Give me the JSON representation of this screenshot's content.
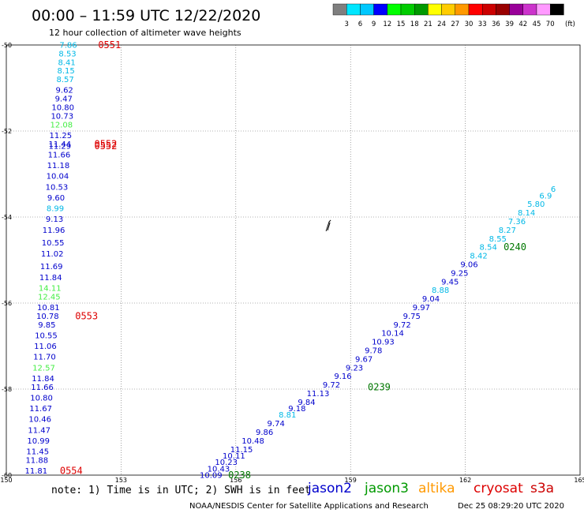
{
  "header": {
    "title": "00:00 – 11:59 UTC 12/22/2020",
    "subtitle": "12 hour collection of altimeter wave heights"
  },
  "colorbar": {
    "unit": "(ft)",
    "ticks": [
      "3",
      "6",
      "9",
      "12",
      "15",
      "18",
      "21",
      "24",
      "27",
      "30",
      "33",
      "36",
      "39",
      "42",
      "45",
      "70"
    ],
    "colors": [
      "#7f7f7f",
      "#00e6ff",
      "#00c8ff",
      "#0000ff",
      "#00ff00",
      "#00cc00",
      "#009900",
      "#ffff00",
      "#ffcc00",
      "#ff9900",
      "#ff0000",
      "#cc0000",
      "#990000",
      "#990099",
      "#cc33cc",
      "#ff99ff",
      "#000000"
    ]
  },
  "footer": {
    "note": "note:  1) Time is in UTC;  2) SWH is in feet",
    "credit": "NOAA/NESDIS Center for Satellite Applications and Research",
    "timestamp": "Dec 25 08:29:20 UTC 2020",
    "legend": [
      {
        "label": "jason2",
        "color": "#0000cc"
      },
      {
        "label": "jason3",
        "color": "#009900"
      },
      {
        "label": "altika",
        "color": "#ff9900"
      },
      {
        "label": "cryosat",
        "color": "#dd0000"
      },
      {
        "label": "s3a",
        "color": "#cc0000"
      }
    ]
  },
  "chart_data": {
    "type": "scatter",
    "xlim": [
      150,
      165
    ],
    "ylim": [
      -50,
      -60
    ],
    "x_ticks": [
      "150",
      "153",
      "156",
      "159",
      "162",
      "165"
    ],
    "y_ticks": [
      "-50",
      "-52",
      "-54",
      "-56",
      "-58",
      "-60"
    ],
    "grid": true,
    "series": [
      {
        "name": "jason2",
        "points": [
          [
            151.62,
            -50.0,
            "7.86"
          ],
          [
            151.6,
            -50.2,
            "8.53"
          ],
          [
            151.58,
            -50.4,
            "8.41"
          ],
          [
            151.56,
            -50.6,
            "8.15"
          ],
          [
            151.54,
            -50.8,
            "8.57"
          ],
          [
            151.52,
            -51.05,
            "9.62"
          ],
          [
            151.5,
            -51.25,
            "9.47"
          ],
          [
            151.48,
            -51.45,
            "10.80"
          ],
          [
            151.46,
            -51.65,
            "10.73"
          ],
          [
            151.44,
            -51.85,
            "12.08"
          ],
          [
            151.42,
            -52.1,
            "11.25"
          ],
          [
            151.4,
            -52.3,
            "11.44"
          ],
          [
            151.4,
            -52.35,
            "11.29"
          ],
          [
            151.38,
            -52.55,
            "11.66"
          ],
          [
            151.36,
            -52.8,
            "11.18"
          ],
          [
            151.34,
            -53.05,
            "10.04"
          ],
          [
            151.32,
            -53.3,
            "10.53"
          ],
          [
            151.3,
            -53.55,
            "9.60"
          ],
          [
            151.28,
            -53.8,
            "8.99"
          ],
          [
            151.26,
            -54.05,
            "9.13"
          ],
          [
            151.24,
            -54.3,
            "11.96"
          ],
          [
            151.22,
            -54.6,
            "10.55"
          ],
          [
            151.2,
            -54.85,
            "11.02"
          ],
          [
            151.18,
            -55.15,
            "11.69"
          ],
          [
            151.16,
            -55.4,
            "11.84"
          ],
          [
            151.14,
            -55.65,
            "14.11"
          ],
          [
            151.12,
            -55.85,
            "12.45"
          ],
          [
            151.1,
            -56.1,
            "10.81"
          ],
          [
            151.08,
            -56.3,
            "10.78"
          ],
          [
            151.06,
            -56.5,
            "9.85"
          ],
          [
            151.04,
            -56.75,
            "10.55"
          ],
          [
            151.02,
            -57.0,
            "11.06"
          ],
          [
            151.0,
            -57.25,
            "11.70"
          ],
          [
            150.98,
            -57.5,
            "12.57"
          ],
          [
            150.96,
            -57.75,
            "11.84"
          ],
          [
            150.94,
            -57.95,
            "11.66"
          ],
          [
            150.92,
            -58.2,
            "10.80"
          ],
          [
            150.9,
            -58.45,
            "11.67"
          ],
          [
            150.88,
            -58.7,
            "10.46"
          ],
          [
            150.86,
            -58.95,
            "11.47"
          ],
          [
            150.84,
            -59.2,
            "10.99"
          ],
          [
            150.82,
            -59.45,
            "11.45"
          ],
          [
            150.8,
            -59.65,
            "11.88"
          ],
          [
            150.78,
            -59.9,
            "11.81"
          ]
        ]
      },
      {
        "name": "jason3",
        "points": [
          [
            155.35,
            -60.0,
            "10.09"
          ],
          [
            155.55,
            -59.85,
            "10.43"
          ],
          [
            155.75,
            -59.7,
            "10.23"
          ],
          [
            155.95,
            -59.55,
            "10.11"
          ],
          [
            156.15,
            -59.4,
            "11.15"
          ],
          [
            156.45,
            -59.2,
            "10.48"
          ],
          [
            156.75,
            -59.0,
            "9.86"
          ],
          [
            157.05,
            -58.8,
            "9.74"
          ],
          [
            157.35,
            -58.6,
            "8.81"
          ],
          [
            157.6,
            -58.45,
            "9.18"
          ],
          [
            157.85,
            -58.3,
            "9.84"
          ],
          [
            158.15,
            -58.1,
            "11.13"
          ],
          [
            158.5,
            -57.9,
            "9.72"
          ],
          [
            158.8,
            -57.7,
            "9.16"
          ],
          [
            159.1,
            -57.5,
            "9.23"
          ],
          [
            159.35,
            -57.3,
            "9.67"
          ],
          [
            159.6,
            -57.1,
            "9.78"
          ],
          [
            159.85,
            -56.9,
            "10.93"
          ],
          [
            160.1,
            -56.7,
            "10.14"
          ],
          [
            160.35,
            -56.5,
            "9.72"
          ],
          [
            160.6,
            -56.3,
            "9.75"
          ],
          [
            160.85,
            -56.1,
            "9.97"
          ],
          [
            161.1,
            -55.9,
            "9.04"
          ],
          [
            161.35,
            -55.7,
            "8.88"
          ],
          [
            161.6,
            -55.5,
            "9.45"
          ],
          [
            161.85,
            -55.3,
            "9.25"
          ],
          [
            162.1,
            -55.1,
            "9.06"
          ],
          [
            162.35,
            -54.9,
            "8.42"
          ],
          [
            162.6,
            -54.7,
            "8.54"
          ],
          [
            162.85,
            -54.5,
            "8.55"
          ],
          [
            163.1,
            -54.3,
            "8.27"
          ],
          [
            163.35,
            -54.1,
            "7.36"
          ],
          [
            163.6,
            -53.9,
            "8.14"
          ],
          [
            163.85,
            -53.7,
            "5.80"
          ],
          [
            164.1,
            -53.5,
            "6.9"
          ],
          [
            164.3,
            -53.35,
            "6"
          ]
        ]
      }
    ],
    "time_labels": [
      {
        "x": 152.4,
        "y": -50.0,
        "text": "0551",
        "color": "#dd0000"
      },
      {
        "x": 152.3,
        "y": -52.3,
        "text": "0552",
        "color": "#dd0000"
      },
      {
        "x": 152.3,
        "y": -52.35,
        "text": "0552",
        "color": "#dd0000"
      },
      {
        "x": 151.8,
        "y": -56.3,
        "text": "0553",
        "color": "#dd0000"
      },
      {
        "x": 151.4,
        "y": -59.9,
        "text": "0554",
        "color": "#dd0000"
      },
      {
        "x": 155.8,
        "y": -60.0,
        "text": "0238",
        "color": "#007700"
      },
      {
        "x": 159.45,
        "y": -57.95,
        "text": "0239",
        "color": "#007700"
      },
      {
        "x": 163.0,
        "y": -54.7,
        "text": "0240",
        "color": "#007700"
      }
    ],
    "coastline_hint": {
      "x": 158.4,
      "y": -54.2
    }
  }
}
